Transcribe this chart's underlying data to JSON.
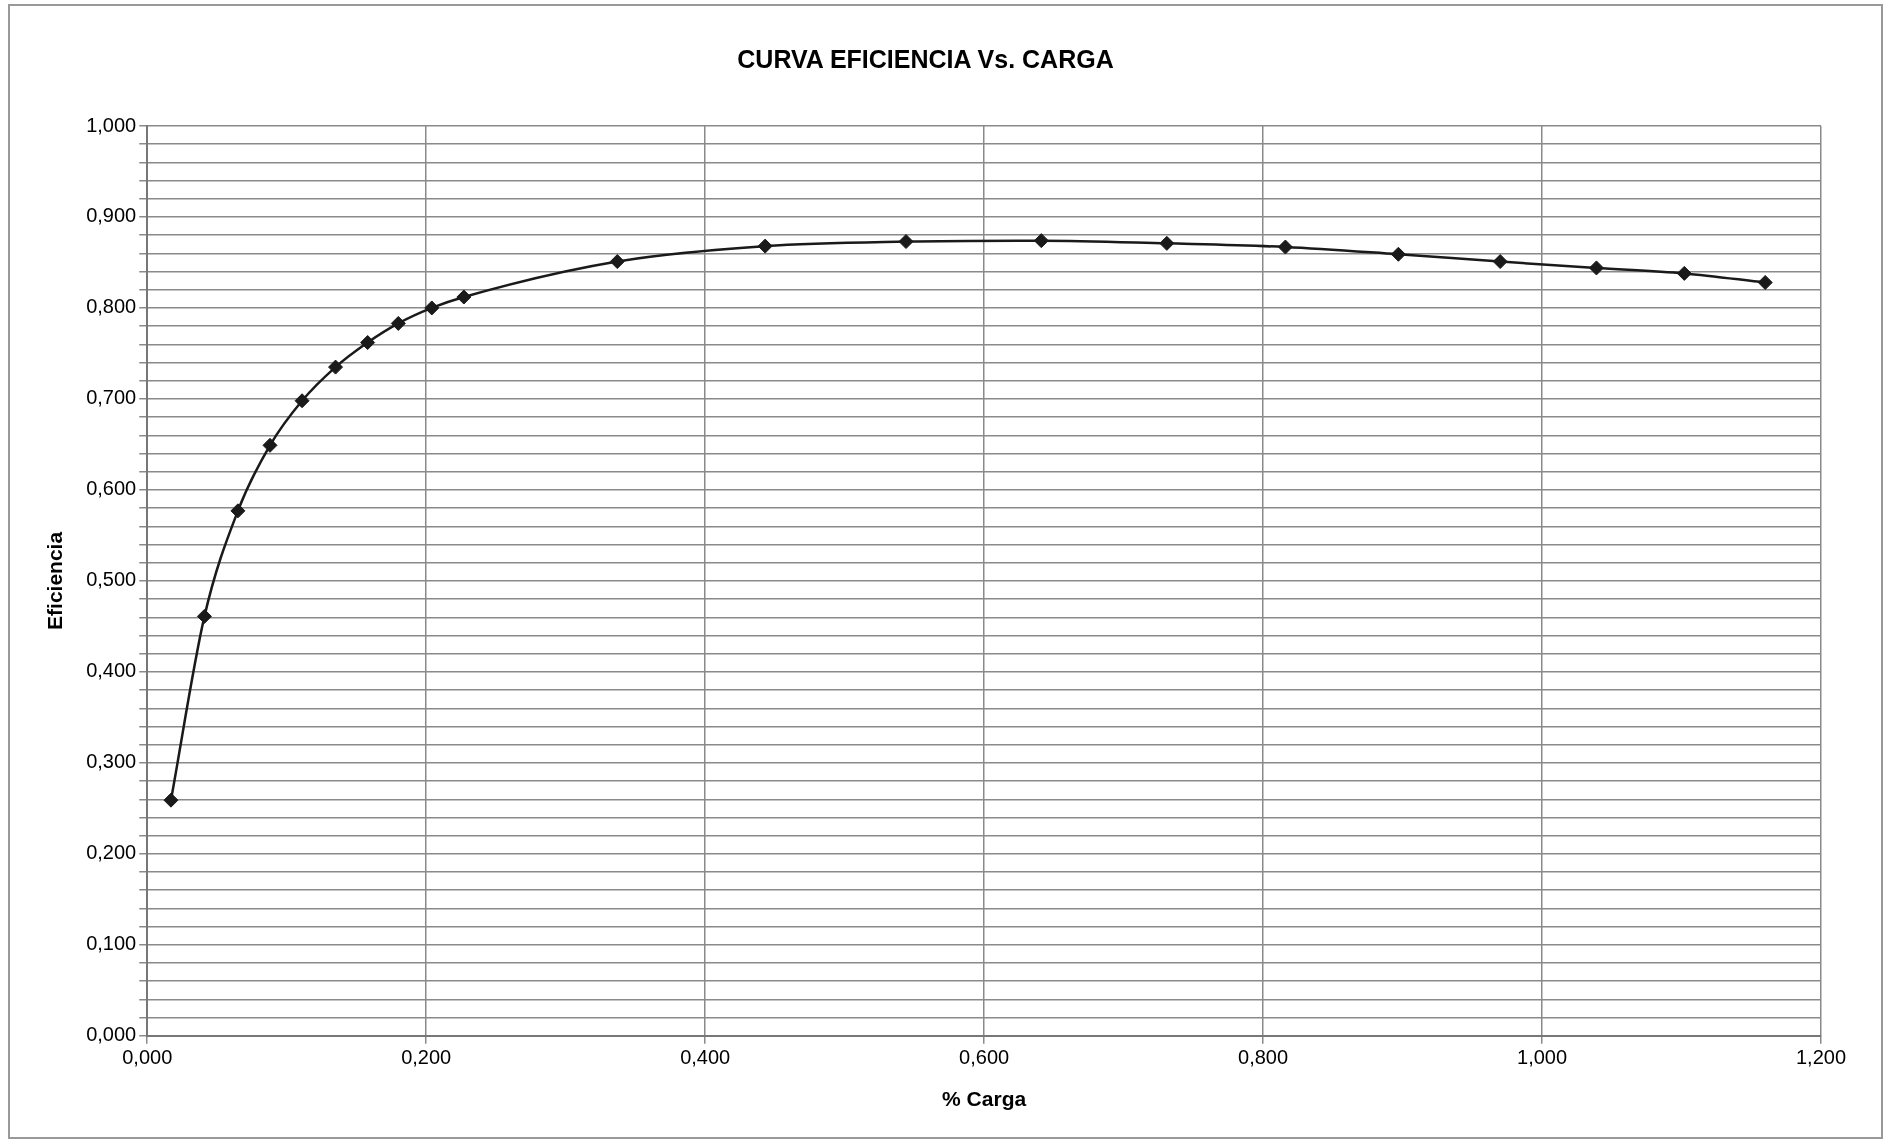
{
  "chart_data": {
    "type": "line",
    "title": "CURVA EFICIENCIA Vs. CARGA",
    "xlabel": "% Carga",
    "ylabel": "Eficiencia",
    "x": [
      0.017,
      0.041,
      0.065,
      0.088,
      0.111,
      0.135,
      0.158,
      0.18,
      0.204,
      0.227,
      0.337,
      0.443,
      0.544,
      0.641,
      0.731,
      0.816,
      0.897,
      0.97,
      1.039,
      1.102,
      1.16
    ],
    "series": [
      {
        "color": "#1a1a1a",
        "values": [
          0.259,
          0.461,
          0.577,
          0.649,
          0.698,
          0.735,
          0.762,
          0.783,
          0.8,
          0.812,
          0.851,
          0.868,
          0.873,
          0.874,
          0.871,
          0.867,
          0.859,
          0.851,
          0.844,
          0.838,
          0.828
        ]
      }
    ],
    "xlim": [
      0,
      1.2
    ],
    "xticks": [
      {
        "value": 0,
        "label": "0,000"
      },
      {
        "value": 0.2,
        "label": "0,200"
      },
      {
        "value": 0.4,
        "label": "0,400"
      },
      {
        "value": 0.6,
        "label": "0,600"
      },
      {
        "value": 0.8,
        "label": "0,800"
      },
      {
        "value": 1.0,
        "label": "1,000"
      },
      {
        "value": 1.2,
        "label": "1,200"
      }
    ],
    "ylim": [
      0,
      1
    ],
    "yticks": [
      {
        "value": 0,
        "label": "0,000"
      },
      {
        "value": 0.02,
        "label": null
      },
      {
        "value": 0.04,
        "label": null
      },
      {
        "value": 0.06,
        "label": null
      },
      {
        "value": 0.08,
        "label": null
      },
      {
        "value": 0.1,
        "label": "0,100"
      },
      {
        "value": 0.12,
        "label": null
      },
      {
        "value": 0.14,
        "label": null
      },
      {
        "value": 0.16,
        "label": null
      },
      {
        "value": 0.18,
        "label": null
      },
      {
        "value": 0.2,
        "label": "0,200"
      },
      {
        "value": 0.22,
        "label": null
      },
      {
        "value": 0.24,
        "label": null
      },
      {
        "value": 0.26,
        "label": null
      },
      {
        "value": 0.28,
        "label": null
      },
      {
        "value": 0.3,
        "label": "0,300"
      },
      {
        "value": 0.32,
        "label": null
      },
      {
        "value": 0.34,
        "label": null
      },
      {
        "value": 0.36,
        "label": null
      },
      {
        "value": 0.38,
        "label": null
      },
      {
        "value": 0.4,
        "label": "0,400"
      },
      {
        "value": 0.42,
        "label": null
      },
      {
        "value": 0.44,
        "label": null
      },
      {
        "value": 0.46,
        "label": null
      },
      {
        "value": 0.48,
        "label": null
      },
      {
        "value": 0.5,
        "label": "0,500"
      },
      {
        "value": 0.52,
        "label": null
      },
      {
        "value": 0.54,
        "label": null
      },
      {
        "value": 0.56,
        "label": null
      },
      {
        "value": 0.58,
        "label": null
      },
      {
        "value": 0.6,
        "label": "0,600"
      },
      {
        "value": 0.62,
        "label": null
      },
      {
        "value": 0.64,
        "label": null
      },
      {
        "value": 0.66,
        "label": null
      },
      {
        "value": 0.68,
        "label": null
      },
      {
        "value": 0.7,
        "label": "0,700"
      },
      {
        "value": 0.72,
        "label": null
      },
      {
        "value": 0.74,
        "label": null
      },
      {
        "value": 0.76,
        "label": null
      },
      {
        "value": 0.78,
        "label": null
      },
      {
        "value": 0.8,
        "label": "0,800"
      },
      {
        "value": 0.82,
        "label": null
      },
      {
        "value": 0.84,
        "label": null
      },
      {
        "value": 0.86,
        "label": null
      },
      {
        "value": 0.88,
        "label": null
      },
      {
        "value": 0.9,
        "label": "0,900"
      },
      {
        "value": 0.92,
        "label": null
      },
      {
        "value": 0.94,
        "label": null
      },
      {
        "value": 0.96,
        "label": null
      },
      {
        "value": 0.98,
        "label": null
      },
      {
        "value": 1.0,
        "label": "1,000"
      }
    ],
    "grid": true,
    "legend": false,
    "marker": "diamond",
    "line_style": "solid"
  }
}
